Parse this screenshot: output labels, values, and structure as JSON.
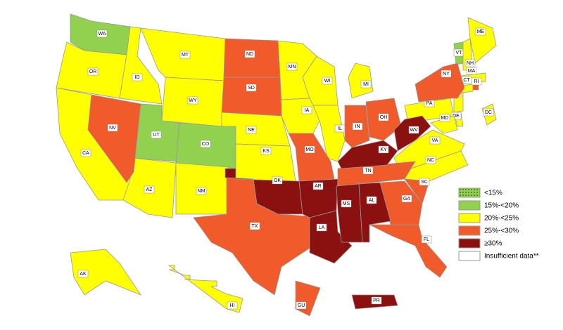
{
  "legend": [
    {
      "label": "<15%",
      "color": "#92d050",
      "pattern": true,
      "states": []
    },
    {
      "label": "15%-<20%",
      "color": "#92d050",
      "states": [
        "WA",
        "UT",
        "CO",
        "VT"
      ]
    },
    {
      "label": "20%-<25%",
      "color": "#ffff00",
      "states": [
        "OR",
        "CA",
        "ID",
        "MT",
        "WY",
        "AZ",
        "NM",
        "NE",
        "KS",
        "MN",
        "IA",
        "WI",
        "IL",
        "MI",
        "PA",
        "NJ",
        "DE",
        "MD",
        "VA",
        "NC",
        "ME",
        "NH",
        "MA",
        "CT",
        "AK",
        "HI",
        "DC"
      ]
    },
    {
      "label": "25%-<30%",
      "color": "#f15a2b",
      "states": [
        "ND",
        "SD",
        "NV",
        "TX",
        "MO",
        "IN",
        "OH",
        "TN",
        "SC",
        "GA",
        "FL",
        "NY",
        "RI",
        "GU"
      ]
    },
    {
      "label": "≥30%",
      "color": "#8b1111",
      "states": [
        "OK",
        "AR",
        "LA",
        "MS",
        "AL",
        "KY",
        "WV",
        "PR"
      ]
    },
    {
      "label": "Insufficient data**",
      "color": "#ffffff",
      "states": []
    }
  ]
}
